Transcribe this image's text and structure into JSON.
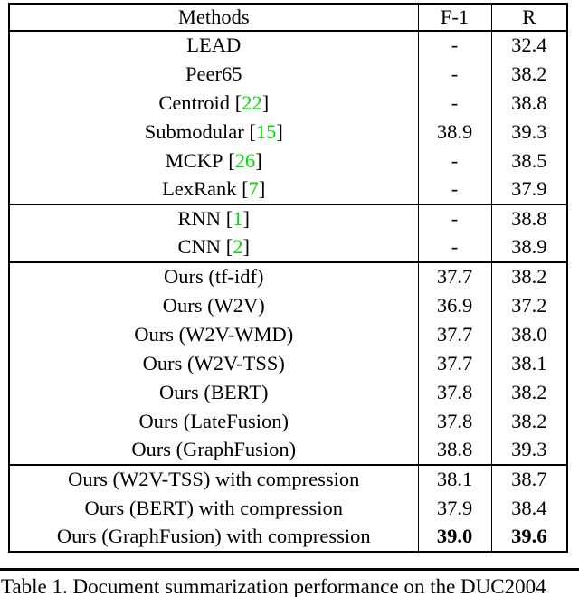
{
  "table": {
    "columns": [
      "Methods",
      "F-1",
      "R"
    ],
    "citation_color": "#00dd00",
    "sections": [
      {
        "rows": [
          {
            "method": "LEAD",
            "cite": null,
            "f1": "-",
            "r": "32.4",
            "bold": false
          },
          {
            "method": "Peer65",
            "cite": null,
            "f1": "-",
            "r": "38.2",
            "bold": false
          },
          {
            "method": "Centroid",
            "cite": "22",
            "f1": "-",
            "r": "38.8",
            "bold": false
          },
          {
            "method": "Submodular",
            "cite": "15",
            "f1": "38.9",
            "r": "39.3",
            "bold": false
          },
          {
            "method": "MCKP",
            "cite": "26",
            "f1": "-",
            "r": "38.5",
            "bold": false
          },
          {
            "method": "LexRank",
            "cite": "7",
            "f1": "-",
            "r": "37.9",
            "bold": false
          }
        ]
      },
      {
        "rows": [
          {
            "method": "RNN",
            "cite": "1",
            "f1": "-",
            "r": "38.8",
            "bold": false
          },
          {
            "method": "CNN",
            "cite": "2",
            "f1": "-",
            "r": "38.9",
            "bold": false
          }
        ]
      },
      {
        "rows": [
          {
            "method": "Ours (tf-idf)",
            "cite": null,
            "f1": "37.7",
            "r": "38.2",
            "bold": false
          },
          {
            "method": "Ours (W2V)",
            "cite": null,
            "f1": "36.9",
            "r": "37.2",
            "bold": false
          },
          {
            "method": "Ours (W2V-WMD)",
            "cite": null,
            "f1": "37.7",
            "r": "38.0",
            "bold": false
          },
          {
            "method": "Ours (W2V-TSS)",
            "cite": null,
            "f1": "37.7",
            "r": "38.1",
            "bold": false
          },
          {
            "method": "Ours (BERT)",
            "cite": null,
            "f1": "37.8",
            "r": "38.2",
            "bold": false
          },
          {
            "method": "Ours (LateFusion)",
            "cite": null,
            "f1": "37.8",
            "r": "38.2",
            "bold": false
          },
          {
            "method": "Ours (GraphFusion)",
            "cite": null,
            "f1": "38.8",
            "r": "39.3",
            "bold": false
          }
        ]
      },
      {
        "rows": [
          {
            "method": "Ours (W2V-TSS) with compression",
            "cite": null,
            "f1": "38.1",
            "r": "38.7",
            "bold": false
          },
          {
            "method": "Ours (BERT) with compression",
            "cite": null,
            "f1": "37.9",
            "r": "38.4",
            "bold": false
          },
          {
            "method": "Ours (GraphFusion) with compression",
            "cite": null,
            "f1": "39.0",
            "r": "39.6",
            "bold": true
          }
        ]
      }
    ]
  },
  "caption": "Table 1. Document summarization performance on the DUC2004"
}
